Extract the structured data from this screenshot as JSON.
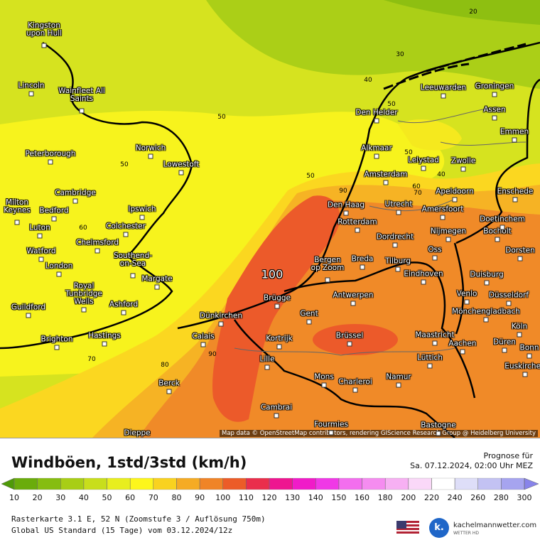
{
  "map": {
    "place_labels": [
      "Kingston upon Hull",
      "Lincoln",
      "Wainfleet All Saints",
      "Peterborough",
      "Norwich",
      "Lowestoft",
      "Cambridge",
      "Ipswich",
      "Milton Keynes",
      "Bedford",
      "Luton",
      "Colchester",
      "Chelmsford",
      "Southend-on-Sea",
      "Watford",
      "London",
      "Royal Tunbridge Wells",
      "Ashford",
      "Margate",
      "Guildford",
      "Hastings",
      "Brighton",
      "Dünkirchen",
      "Calais",
      "Berck",
      "Dieppe",
      "Lille",
      "Kortrijk",
      "Brügge",
      "Gent",
      "Antwerpen",
      "Brüssel",
      "Mons",
      "Charleroi",
      "Namur",
      "Cambrai",
      "Fourmies",
      "Bastogne",
      "Maastricht",
      "Lüttich",
      "Aachen",
      "Düren",
      "Köln",
      "Bonn",
      "Euskirchen",
      "Mönchengladbach",
      "Düsseldorf",
      "Venlo",
      "Duisburg",
      "Dorsten",
      "Bocholt",
      "Doetinchem",
      "Nijmegen",
      "Oss",
      "Eindhoven",
      "Tilburg",
      "Breda",
      "Bergen op Zoom",
      "Dordrecht",
      "Rotterdam",
      "Den Haag",
      "Utrecht",
      "Amersfoort",
      "Apeldoorn",
      "Enschede",
      "Amsterdam",
      "Lelystad",
      "Zwolle",
      "Alkmaar",
      "Den Helder",
      "Leeuwarden",
      "Groningen",
      "Assen",
      "Emmen"
    ],
    "contour_labels": [
      20,
      30,
      40,
      50,
      50,
      50,
      50,
      50,
      40,
      60,
      70,
      90,
      60,
      70,
      80,
      90
    ],
    "peak_label": 100,
    "attribution": "Map data © OpenStreetMap contributors, rendering GIScience Research Group @ Heidelberg University"
  },
  "legend": {
    "title": "Windböen, 1std/3std (km/h)",
    "forecast_label": "Prognose für",
    "forecast_time": "Sa. 07.12.2024, 02:00 Uhr MEZ",
    "ticks": [
      10,
      20,
      30,
      40,
      50,
      60,
      70,
      80,
      90,
      100,
      110,
      120,
      130,
      140,
      150,
      160,
      180,
      200,
      220,
      240,
      260,
      280,
      300
    ],
    "colors": [
      "#4f9a08",
      "#6aac0b",
      "#86bd10",
      "#a8ce16",
      "#c8de1c",
      "#e8ee1e",
      "#fdf61c",
      "#f9d21f",
      "#f5ab24",
      "#f08427",
      "#ec5c28",
      "#ea2e4c",
      "#ee1690",
      "#f01cc8",
      "#f038e6",
      "#f36eee",
      "#f58cf0",
      "#f7b0f3",
      "#fad8f8",
      "#ffffff",
      "#dedef8",
      "#c3c2f3",
      "#a6a4ef",
      "#8884ea"
    ]
  },
  "footer": {
    "grid_info": "Rasterkarte 3.1 E, 52 N (Zoomstufe 3 / Auflösung 750m)",
    "model_info": "Global US Standard (15 Tage) vom 03.12.2024/12z",
    "brand": "kachelmannwetter.com",
    "brand_sub": "WETTER HD",
    "logo_letter": "k."
  }
}
